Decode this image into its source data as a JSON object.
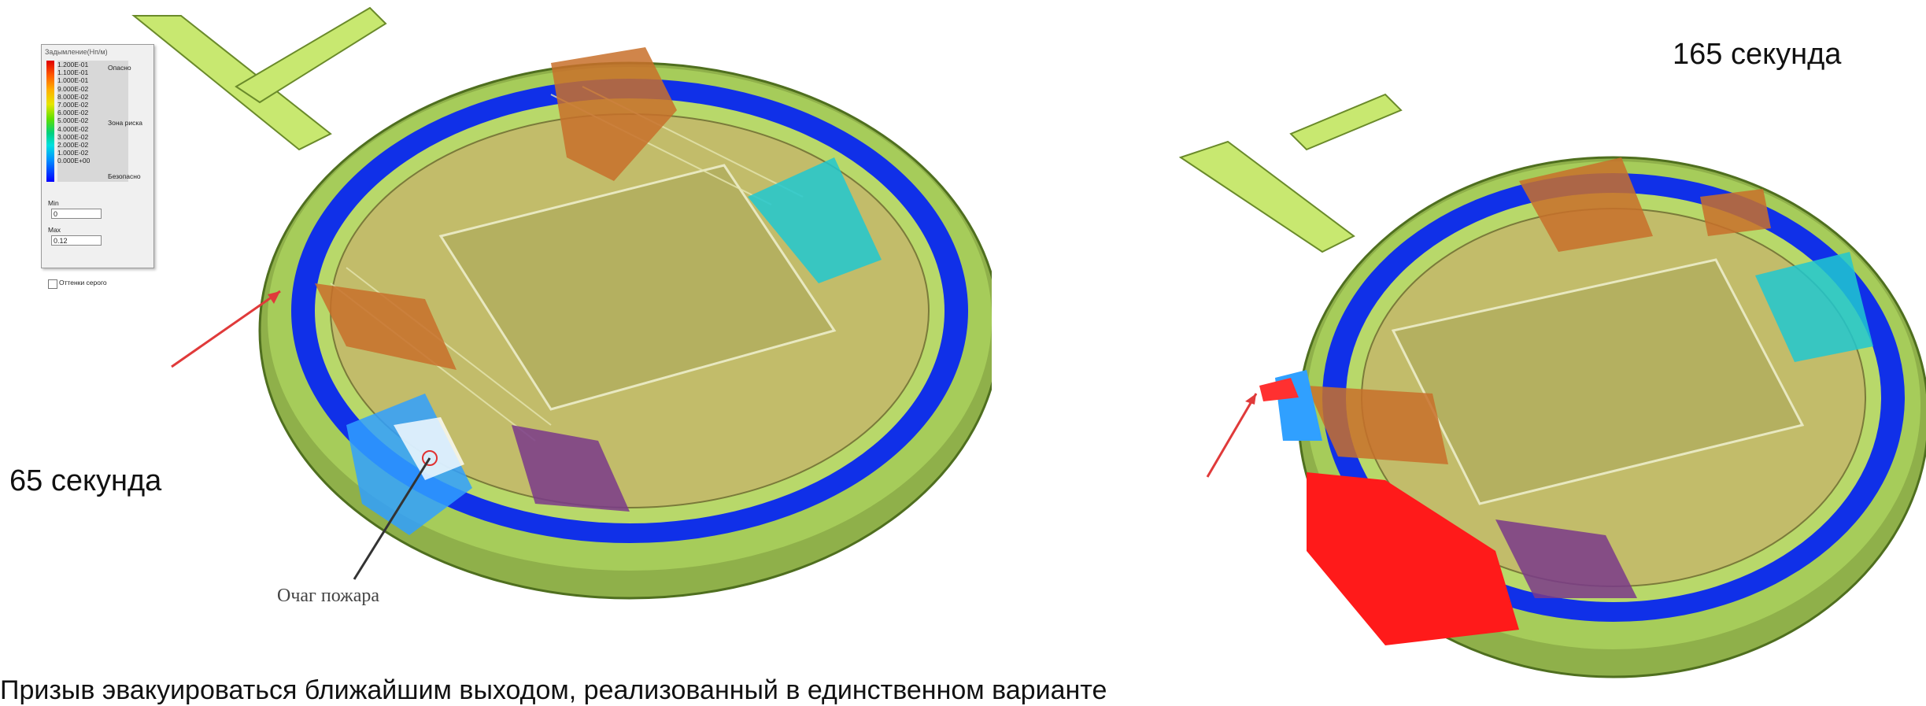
{
  "legend": {
    "title": "Задымление(Нп/м)",
    "ticks": [
      "1.200E-01",
      "1.100E-01",
      "1.000E-01",
      "9.000E-02",
      "8.000E-02",
      "7.000E-02",
      "6.000E-02",
      "5.000E-02",
      "4.000E-02",
      "3.000E-02",
      "2.000E-02",
      "1.000E-02",
      "0.000E+00"
    ],
    "zone_danger": "Опасно",
    "zone_risk": "Зона риска",
    "zone_safe": "Безопасно",
    "min_label": "Min",
    "min_value": "0",
    "max_label": "Max",
    "max_value": "0.12",
    "grayscale_label": "Оттенки серого"
  },
  "captions": {
    "left_time": "65 секунда",
    "right_time": "165 секунда",
    "fire_source": "Очаг пожара",
    "bottom_text": "Призыв эвакуироваться ближайшим выходом, реализованный в единственном варианте"
  }
}
